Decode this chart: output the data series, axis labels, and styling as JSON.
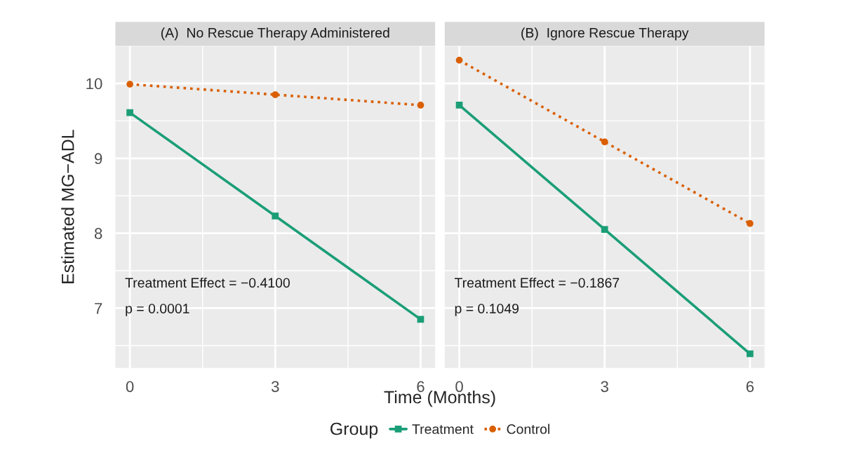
{
  "chart_data": [
    {
      "type": "line",
      "title": "(A)  No Rescue Therapy Administered",
      "xlabel": "Time (Months)",
      "ylabel": "Estimated MG−ADL",
      "legend_title": "Group",
      "legend": "bottom",
      "grid": true,
      "x": [
        0,
        3,
        6
      ],
      "xlim": [
        -0.3,
        6.3
      ],
      "xticks": [
        0,
        3,
        6
      ],
      "ylim": [
        6.2,
        10.5
      ],
      "yticks": [
        7,
        8,
        9,
        10
      ],
      "series": [
        {
          "name": "Treatment",
          "color": "#1b9e77",
          "marker": "square",
          "line_style": "solid",
          "values": [
            9.61,
            8.23,
            6.85
          ]
        },
        {
          "name": "Control",
          "color": "#d95f02",
          "marker": "circle",
          "line_style": "dotted",
          "values": [
            9.99,
            9.85,
            9.71
          ]
        }
      ],
      "annotations": [
        "Treatment Effect = −0.4100",
        "p = 0.0001"
      ]
    },
    {
      "type": "line",
      "title": "(B)  Ignore Rescue Therapy",
      "grid": true,
      "tick_labels": "x",
      "x": [
        0,
        3,
        6
      ],
      "xlim": [
        -0.3,
        6.3
      ],
      "xticks": [
        0,
        3,
        6
      ],
      "ylim": [
        6.2,
        10.5
      ],
      "yticks": [
        7,
        8,
        9,
        10
      ],
      "series": [
        {
          "color": "#1b9e77",
          "marker": "square",
          "line_style": "solid",
          "values": [
            9.71,
            8.05,
            6.39
          ]
        },
        {
          "color": "#d95f02",
          "marker": "circle",
          "line_style": "dotted",
          "values": [
            10.31,
            9.22,
            8.13
          ]
        }
      ],
      "annotations": [
        "Treatment Effect = −0.1867",
        "p = 0.1049"
      ]
    }
  ]
}
